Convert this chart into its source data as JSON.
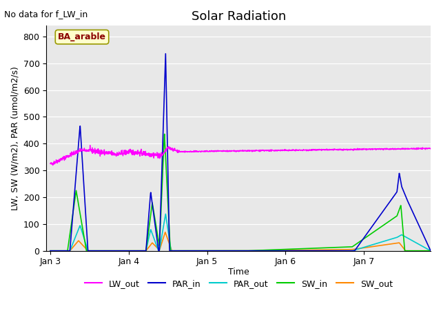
{
  "title": "Solar Radiation",
  "top_left_text": "No data for f_LW_in",
  "box_label": "BA_arable",
  "ylabel": "LW, SW (W/m2), PAR (umol/m2/s)",
  "xlabel": "Time",
  "ylim": [
    0,
    840
  ],
  "yticks": [
    0,
    100,
    200,
    300,
    400,
    500,
    600,
    700,
    800
  ],
  "xtick_labels": [
    "Jan 3",
    "Jan 4",
    "Jan 5",
    "Jan 6",
    "Jan 7"
  ],
  "colors": {
    "LW_out": "#ff00ff",
    "PAR_in": "#0000cc",
    "PAR_out": "#00cccc",
    "SW_in": "#00cc00",
    "SW_out": "#ff8800"
  },
  "bg_color": "#e8e8e8",
  "title_fontsize": 13,
  "label_fontsize": 9
}
